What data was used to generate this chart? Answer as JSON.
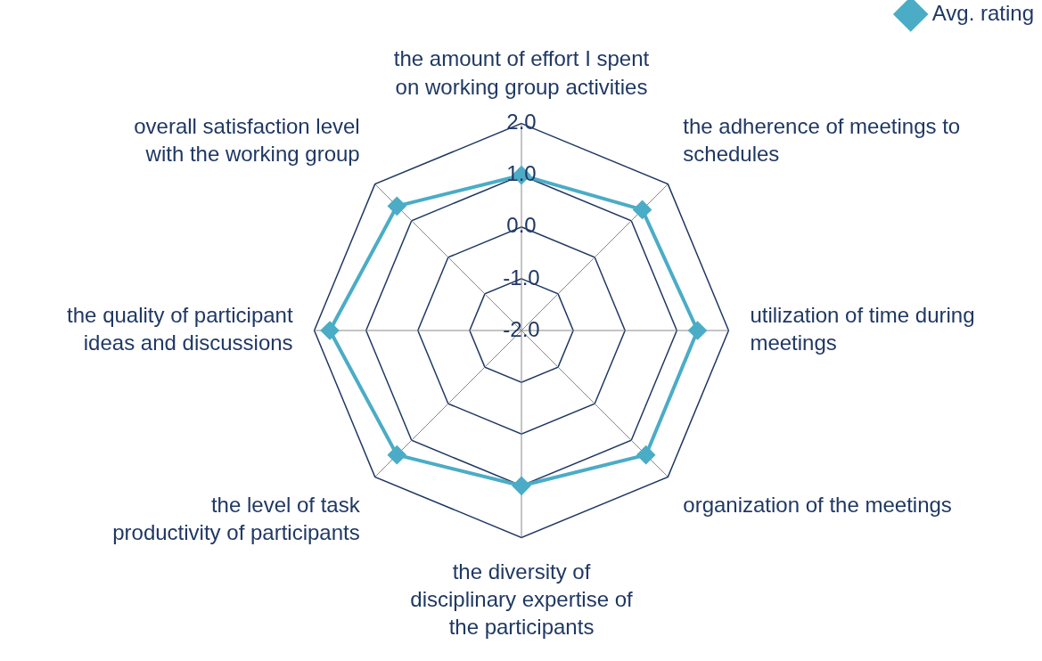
{
  "chart_data": {
    "type": "radar",
    "categories": [
      "the amount of effort I spent on working group activities",
      "the adherence of meetings to schedules",
      "utilization of time during meetings",
      "organization of the meetings",
      "the diversity of disciplinary expertise of the participants",
      "the level of task productivity of participants",
      "the quality of participant ideas and discussions",
      "overall satisfaction level with the working group"
    ],
    "series": [
      {
        "name": "Avg. rating",
        "color": "#4bacc6",
        "values": [
          1.0,
          1.3,
          1.4,
          1.4,
          1.0,
          1.4,
          1.7,
          1.4
        ]
      }
    ],
    "ylim": [
      -2,
      2
    ],
    "yticks": [
      {
        "value": -2,
        "label": "-2.0"
      },
      {
        "value": -1,
        "label": "-1.0"
      },
      {
        "value": 0,
        "label": "0.0"
      },
      {
        "value": 1,
        "label": "1.0"
      },
      {
        "value": 2,
        "label": "2.0"
      }
    ],
    "grid": true,
    "legend": "top right",
    "marker": "diamond",
    "line_style": "solid"
  }
}
